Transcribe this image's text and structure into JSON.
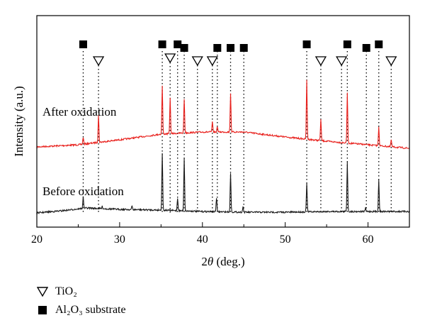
{
  "chart_data": {
    "type": "line",
    "title": "",
    "xlabel": "2θ (deg.)",
    "ylabel": "Intensity (a.u.)",
    "xlim": [
      20,
      65
    ],
    "xticks": [
      20,
      30,
      40,
      50,
      60
    ],
    "yticks": "none",
    "grid": false,
    "series": [
      {
        "name": "After oxidation",
        "color": "#e8201c",
        "baseline": [
          [
            20,
            207
          ],
          [
            25,
            204
          ],
          [
            30,
            197
          ],
          [
            35,
            189
          ],
          [
            40,
            186
          ],
          [
            45,
            186
          ],
          [
            50,
            193
          ],
          [
            55,
            199
          ],
          [
            60,
            204
          ],
          [
            65,
            209
          ]
        ],
        "peaks": [
          [
            25.6,
            10
          ],
          [
            27.45,
            38
          ],
          [
            35.15,
            68
          ],
          [
            36.1,
            50
          ],
          [
            37.8,
            48
          ],
          [
            41.2,
            14
          ],
          [
            41.8,
            8
          ],
          [
            43.4,
            55
          ],
          [
            52.6,
            83
          ],
          [
            54.3,
            30
          ],
          [
            57.5,
            70
          ],
          [
            61.3,
            27
          ],
          [
            62.8,
            10
          ]
        ]
      },
      {
        "name": "Before oxidation",
        "color": "#1a1a1a",
        "baseline": [
          [
            20,
            300
          ],
          [
            23,
            297
          ],
          [
            26,
            293
          ],
          [
            30,
            295
          ],
          [
            35,
            296
          ],
          [
            40,
            298
          ],
          [
            45,
            299
          ],
          [
            50,
            299
          ],
          [
            55,
            298
          ],
          [
            60,
            298
          ],
          [
            65,
            298
          ]
        ],
        "peaks": [
          [
            25.6,
            16
          ],
          [
            27.9,
            3
          ],
          [
            31.5,
            5
          ],
          [
            35.15,
            81
          ],
          [
            37.0,
            18
          ],
          [
            37.8,
            75
          ],
          [
            41.7,
            20
          ],
          [
            43.4,
            55
          ],
          [
            44.9,
            8
          ],
          [
            52.6,
            40
          ],
          [
            57.5,
            70
          ],
          [
            59.7,
            5
          ],
          [
            61.3,
            45
          ]
        ]
      }
    ],
    "markers": {
      "Al2O3": [
        25.6,
        35.15,
        37.0,
        37.8,
        41.8,
        43.4,
        45.0,
        52.6,
        57.5,
        59.8,
        61.3
      ],
      "TiO2": [
        27.45,
        36.1,
        39.4,
        41.2,
        54.3,
        56.8,
        62.8
      ]
    }
  },
  "annotations": {
    "after_label": "After oxidation",
    "before_label": "Before oxidation"
  },
  "legend": {
    "tio2_label": "TiO₂",
    "al2o3_label": "Al₂O₃ substrate"
  }
}
